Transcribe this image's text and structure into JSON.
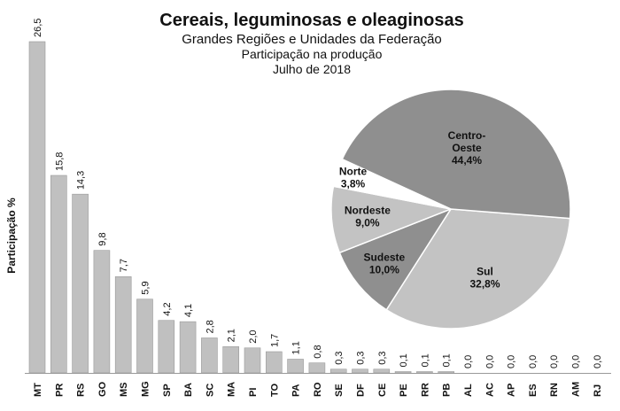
{
  "chart_data": [
    {
      "type": "bar",
      "title": "Cereais, leguminosas e oleaginosas",
      "subtitle": "Grandes Regiões e Unidades da Federação",
      "subtitle2": "Participação na produção",
      "subtitle3": "Julho de 2018",
      "ylabel": "Participação %",
      "categories": [
        "MT",
        "PR",
        "RS",
        "GO",
        "MS",
        "MG",
        "SP",
        "BA",
        "SC",
        "MA",
        "PI",
        "TO",
        "PA",
        "RO",
        "SE",
        "DF",
        "CE",
        "PE",
        "RR",
        "PB",
        "AL",
        "AC",
        "AP",
        "ES",
        "RN",
        "AM",
        "RJ"
      ],
      "values": [
        26.5,
        15.8,
        14.3,
        9.8,
        7.7,
        5.9,
        4.2,
        4.1,
        2.8,
        2.1,
        2.0,
        1.7,
        1.1,
        0.8,
        0.3,
        0.3,
        0.3,
        0.1,
        0.1,
        0.1,
        0.0,
        0.0,
        0.0,
        0.0,
        0.0,
        0.0,
        0.0
      ],
      "value_labels": [
        "26,5",
        "15,8",
        "14,3",
        "9,8",
        "7,7",
        "5,9",
        "4,2",
        "4,1",
        "2,8",
        "2,1",
        "2,0",
        "1,7",
        "1,1",
        "0,8",
        "0,3",
        "0,3",
        "0,3",
        "0,1",
        "0,1",
        "0,1",
        "0,0",
        "0,0",
        "0,0",
        "0,0",
        "0,0",
        "0,0",
        "0,0"
      ],
      "ylim": [
        0,
        28
      ],
      "grid": false,
      "bar_color": "#c0c0c0",
      "bar_edge_color": "#9a9a9a"
    },
    {
      "type": "pie",
      "slices": [
        {
          "name": "Sul",
          "value": 32.8,
          "label": "32,8%",
          "color": "#c3c3c3"
        },
        {
          "name": "Sudeste",
          "value": 10.0,
          "label": "10,0%",
          "color": "#8f8f8f"
        },
        {
          "name": "Nordeste",
          "value": 9.0,
          "label": "9,0%",
          "color": "#c3c3c3"
        },
        {
          "name": "Norte",
          "value": 3.8,
          "label": "3,8%",
          "color": "#ffffff"
        },
        {
          "name": "Centro-Oeste",
          "value": 44.4,
          "label": "44,4%",
          "color": "#8f8f8f"
        }
      ],
      "edge_color": "#ffffff"
    }
  ]
}
